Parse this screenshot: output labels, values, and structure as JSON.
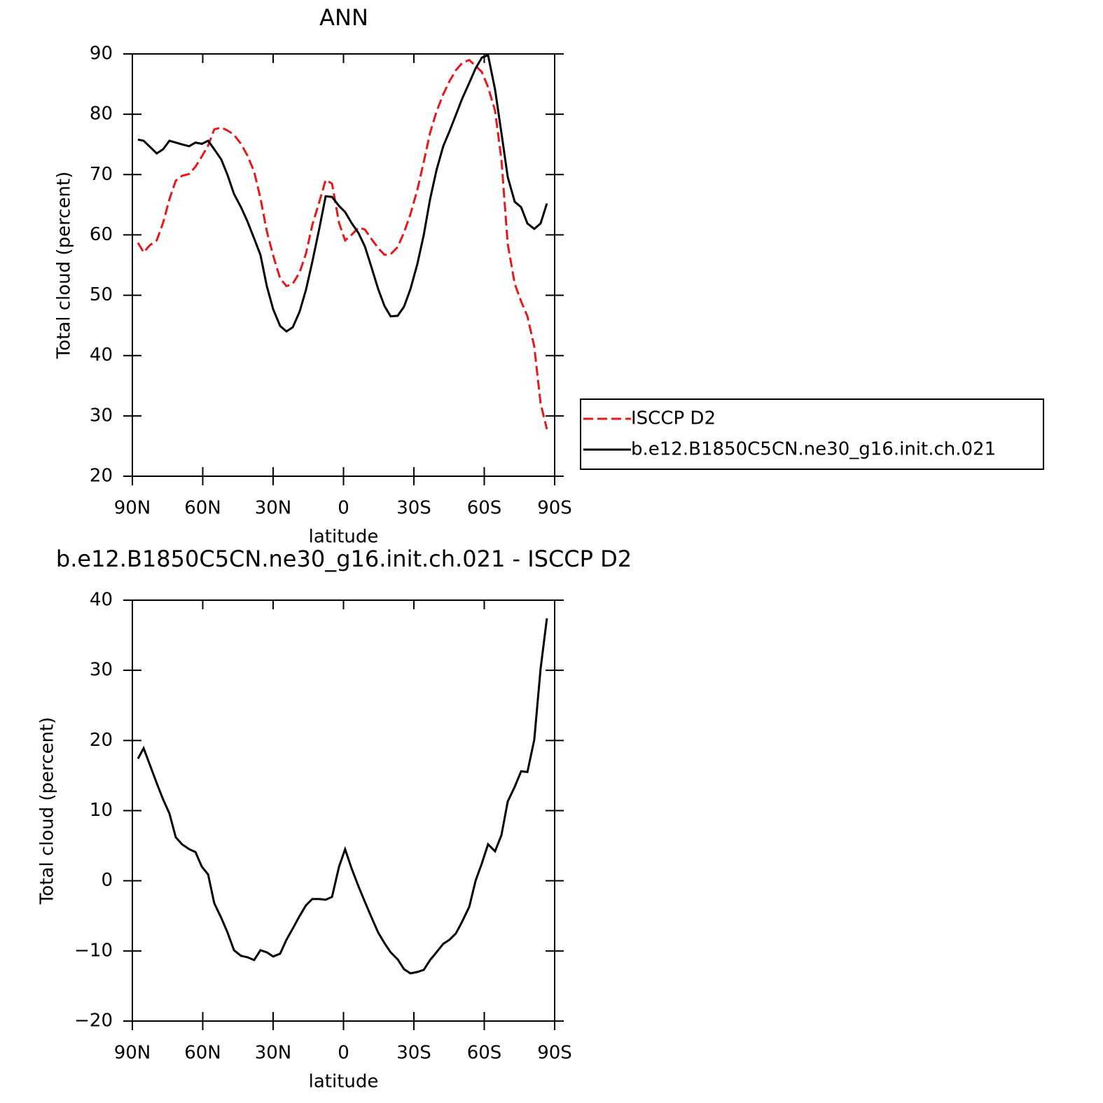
{
  "chart_data": [
    {
      "type": "line",
      "title": "ANN",
      "xlabel": "latitude",
      "ylabel": "Total cloud (percent)",
      "xlim": [
        90,
        -90
      ],
      "xticks": [
        {
          "value": 90,
          "label": "90N"
        },
        {
          "value": 60,
          "label": "60N"
        },
        {
          "value": 30,
          "label": "30N"
        },
        0,
        {
          "value": -30,
          "label": "30S"
        },
        {
          "value": -60,
          "label": "60S"
        },
        {
          "value": -90,
          "label": "90S"
        }
      ],
      "ylim": [
        20,
        90
      ],
      "yticks": [
        20,
        30,
        40,
        50,
        60,
        70,
        80,
        90
      ],
      "legend": "right",
      "x": [
        87.6,
        85.2,
        82.5,
        79.6,
        76.9,
        74.2,
        71.5,
        68.8,
        65.8,
        63.1,
        60.4,
        57.7,
        55.1,
        52.1,
        49.4,
        46.7,
        43.7,
        41.0,
        38.1,
        35.4,
        32.7,
        30.0,
        27.0,
        24.3,
        21.6,
        18.7,
        16.0,
        13.3,
        10.3,
        7.6,
        4.9,
        1.9,
        -0.7,
        -3.4,
        -6.4,
        -9.1,
        -11.8,
        -14.8,
        -17.5,
        -20.1,
        -23.1,
        -25.8,
        -28.5,
        -31.5,
        -34.2,
        -36.9,
        -39.6,
        -42.5,
        -45.2,
        -47.9,
        -50.6,
        -53.6,
        -56.3,
        -59.0,
        -61.6,
        -64.6,
        -67.3,
        -70.0,
        -73.0,
        -75.7,
        -78.4,
        -81.3,
        -84.0,
        -86.7
      ],
      "series": [
        {
          "name": "ISCCP D2",
          "color": "#e8171a",
          "line_style": "dashed",
          "values": [
            58.7,
            57.1,
            58.3,
            59.1,
            62.0,
            65.9,
            69.0,
            69.8,
            70.1,
            71.3,
            73.0,
            74.8,
            77.5,
            77.8,
            77.3,
            76.6,
            75.1,
            73.2,
            70.5,
            66.1,
            60.6,
            56.6,
            52.8,
            51.5,
            51.9,
            53.8,
            56.9,
            61.6,
            65.5,
            69.1,
            68.5,
            62.0,
            59.1,
            60.0,
            61.2,
            60.9,
            59.4,
            57.8,
            56.7,
            56.8,
            58.0,
            60.4,
            63.4,
            67.5,
            72.1,
            76.9,
            80.4,
            83.3,
            85.5,
            87.3,
            88.5,
            89.0,
            88.0,
            87.0,
            84.5,
            80.6,
            72.5,
            58.5,
            51.9,
            49.0,
            46.5,
            41.5,
            32.1,
            27.8
          ]
        },
        {
          "name": "b.e12.B1850C5CN.ne30_g16.init.ch.021",
          "color": "#000000",
          "line_style": "solid",
          "values": [
            75.8,
            75.6,
            74.6,
            73.5,
            74.2,
            75.6,
            75.3,
            75.0,
            74.7,
            75.3,
            75.1,
            75.6,
            74.2,
            72.5,
            69.9,
            66.8,
            64.6,
            62.3,
            59.4,
            56.7,
            51.5,
            47.7,
            44.9,
            44.0,
            44.7,
            47.3,
            50.9,
            55.5,
            61.1,
            66.4,
            66.3,
            64.8,
            63.8,
            62.0,
            60.3,
            58.1,
            54.8,
            51.0,
            48.2,
            46.5,
            46.6,
            48.1,
            51.0,
            55.2,
            60.0,
            65.9,
            70.7,
            74.7,
            77.2,
            79.9,
            82.6,
            85.2,
            87.6,
            89.4,
            89.8,
            84.1,
            76.9,
            69.6,
            65.5,
            64.6,
            61.9,
            61.0,
            61.9,
            65.2
          ]
        }
      ]
    },
    {
      "type": "line",
      "title": "b.e12.B1850C5CN.ne30_g16.init.ch.021 - ISCCP D2",
      "xlabel": "latitude",
      "ylabel": "Total cloud (percent)",
      "xlim": [
        90,
        -90
      ],
      "xticks": [
        {
          "value": 90,
          "label": "90N"
        },
        {
          "value": 60,
          "label": "60N"
        },
        {
          "value": 30,
          "label": "30N"
        },
        0,
        {
          "value": -30,
          "label": "30S"
        },
        {
          "value": -60,
          "label": "60S"
        },
        {
          "value": -90,
          "label": "90S"
        }
      ],
      "ylim": [
        -20,
        40
      ],
      "yticks": [
        {
          "value": -20,
          "label": "−20"
        },
        {
          "value": -10,
          "label": "−10"
        },
        0,
        10,
        20,
        30,
        40
      ],
      "color": "#000000",
      "x": [
        87.6,
        85.2,
        82.5,
        79.6,
        76.9,
        74.2,
        71.5,
        68.8,
        65.8,
        63.1,
        60.4,
        57.7,
        55.1,
        52.1,
        49.4,
        46.7,
        43.7,
        41.0,
        38.1,
        35.4,
        32.7,
        30.0,
        27.0,
        24.3,
        21.6,
        18.7,
        16.0,
        13.3,
        10.3,
        7.6,
        4.9,
        1.9,
        -0.7,
        -3.4,
        -6.4,
        -9.1,
        -11.8,
        -14.8,
        -17.5,
        -20.1,
        -23.1,
        -25.8,
        -28.5,
        -31.5,
        -34.2,
        -36.9,
        -39.6,
        -42.5,
        -45.2,
        -47.9,
        -50.6,
        -53.6,
        -56.3,
        -59.0,
        -61.6,
        -64.6,
        -67.3,
        -70.0,
        -73.0,
        -75.7,
        -78.4,
        -81.3,
        -84.0,
        -86.7
      ],
      "values": [
        17.4,
        18.9,
        16.5,
        13.9,
        11.6,
        9.6,
        6.2,
        5.2,
        4.5,
        4.1,
        2.0,
        0.9,
        -3.2,
        -5.3,
        -7.4,
        -9.9,
        -10.7,
        -10.9,
        -11.3,
        -9.9,
        -10.2,
        -10.8,
        -10.4,
        -8.4,
        -6.8,
        -5.0,
        -3.5,
        -2.6,
        -2.6,
        -2.7,
        -2.3,
        2.0,
        4.5,
        1.8,
        -0.8,
        -3.0,
        -5.1,
        -7.4,
        -8.9,
        -10.2,
        -11.2,
        -12.6,
        -13.2,
        -13.0,
        -12.7,
        -11.3,
        -10.2,
        -9.0,
        -8.4,
        -7.5,
        -5.8,
        -3.7,
        0.0,
        2.5,
        5.2,
        4.2,
        6.5,
        11.3,
        13.4,
        15.6,
        15.5,
        20.1,
        30.2,
        37.4
      ]
    }
  ]
}
